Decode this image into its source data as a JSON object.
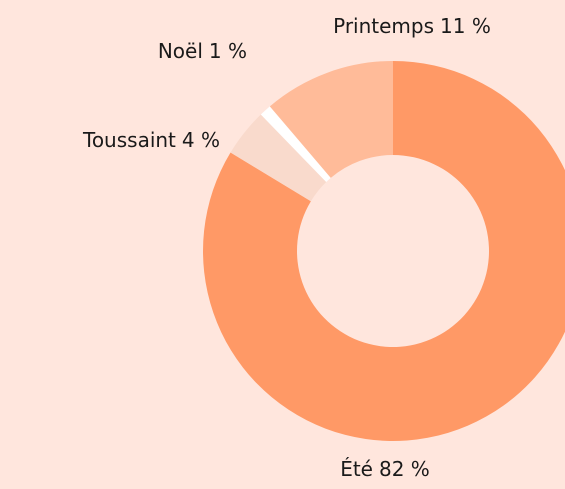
{
  "chart_data": {
    "type": "donut",
    "categories": [
      "Été",
      "Toussaint",
      "Noël",
      "Printemps"
    ],
    "values": [
      82,
      4,
      1,
      11
    ],
    "value_labels": [
      "82 %",
      "4 %",
      "1 %",
      "11 %"
    ],
    "colors": [
      "#ff9966",
      "#f9dacc",
      "#ffffff",
      "#ffbb99"
    ]
  }
}
